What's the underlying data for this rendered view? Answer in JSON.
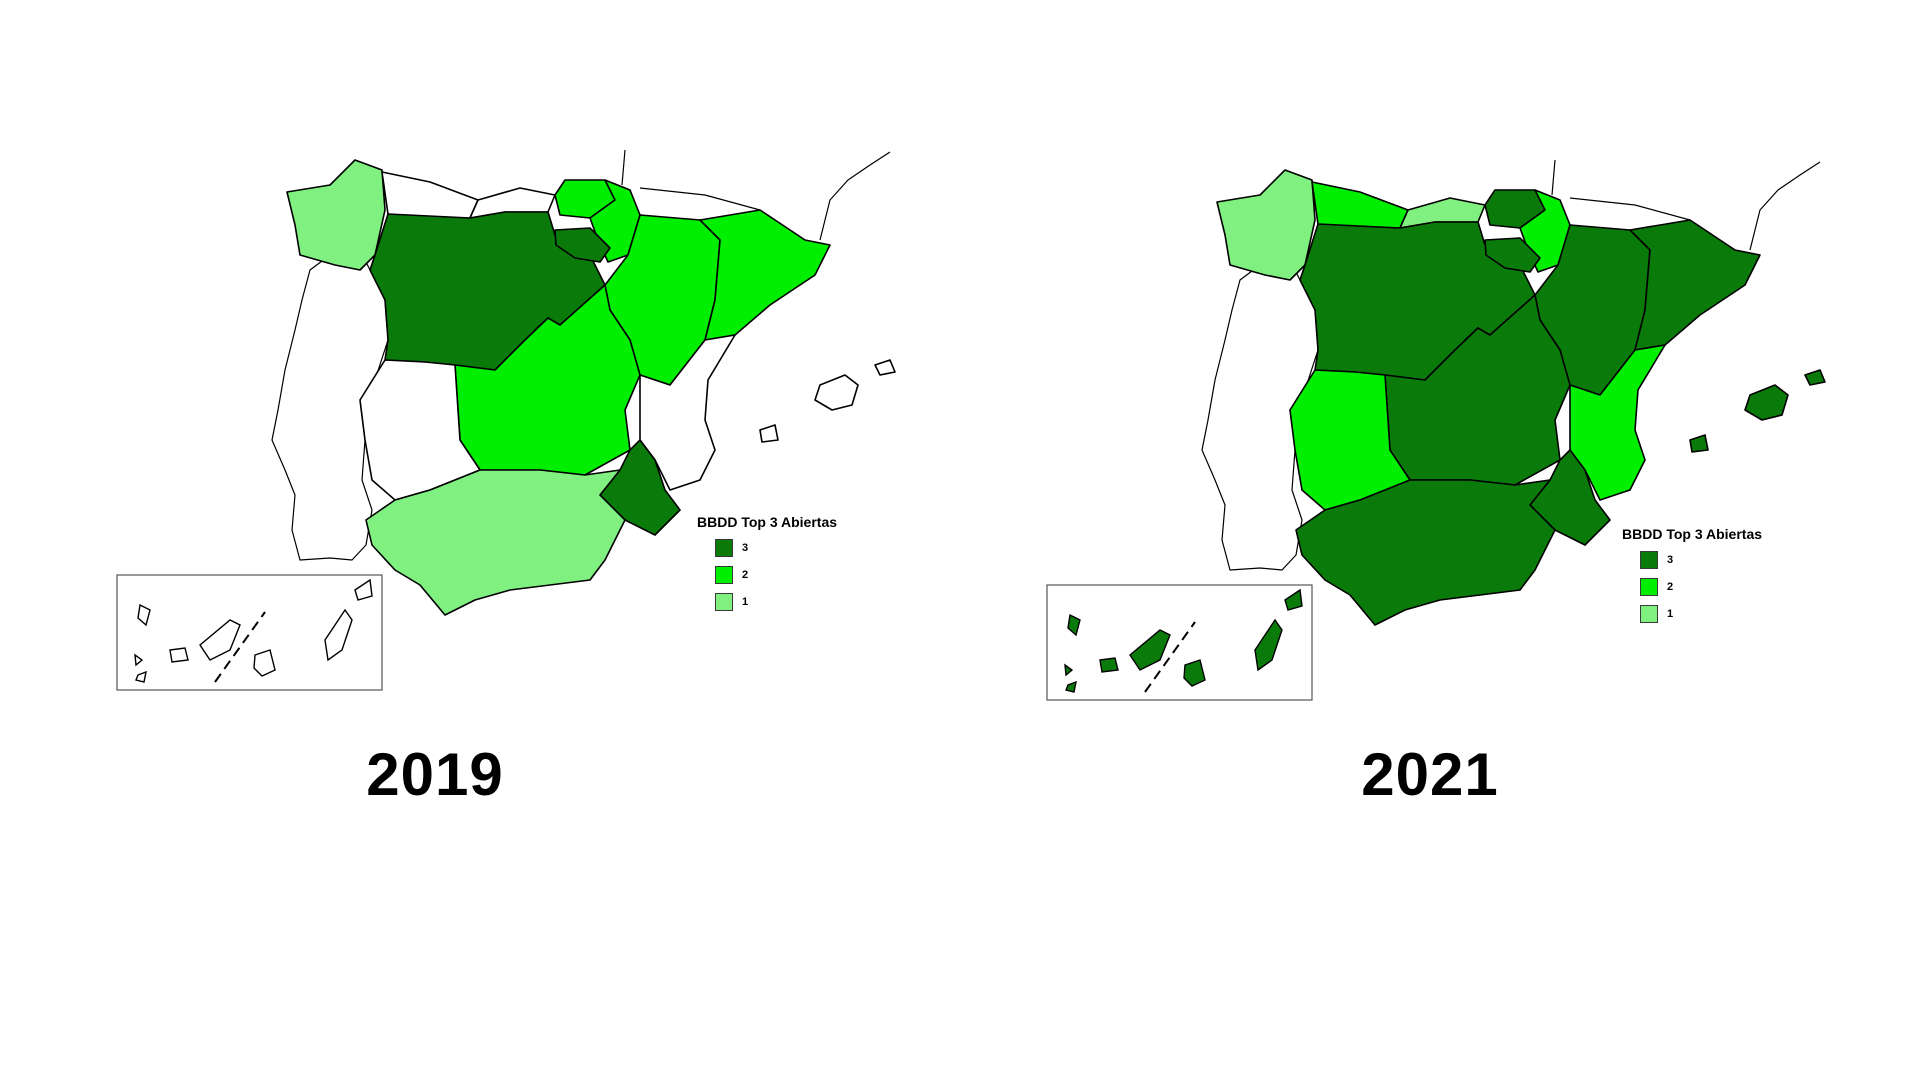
{
  "colors": {
    "level_3": "#0a7a0a",
    "level_2": "#00ee00",
    "level_1": "#80f080",
    "none": "#ffffff",
    "outline": "#000000"
  },
  "legend": {
    "title": "BBDD Top 3 Abiertas",
    "items": [
      {
        "label": "3",
        "color": "#0a7a0a"
      },
      {
        "label": "2",
        "color": "#00ee00"
      },
      {
        "label": "1",
        "color": "#80f080"
      }
    ]
  },
  "maps": [
    {
      "year": "2019",
      "regions": {
        "galicia": 1,
        "asturias": 0,
        "cantabria": 0,
        "pais_vasco": 2,
        "navarra": 2,
        "castilla_y_leon": 3,
        "la_rioja": 3,
        "aragon": 2,
        "cataluna": 2,
        "madrid": 2,
        "castilla_la_mancha": 2,
        "extremadura": 0,
        "comunidad_valenciana": 0,
        "murcia": 3,
        "andalucia": 1,
        "baleares": 0,
        "canarias": 0
      }
    },
    {
      "year": "2021",
      "regions": {
        "galicia": 1,
        "asturias": 2,
        "cantabria": 1,
        "pais_vasco": 3,
        "navarra": 2,
        "castilla_y_leon": 3,
        "la_rioja": 3,
        "aragon": 3,
        "cataluna": 3,
        "madrid": 3,
        "castilla_la_mancha": 3,
        "extremadura": 2,
        "comunidad_valenciana": 2,
        "murcia": 3,
        "andalucia": 3,
        "baleares": 3,
        "canarias": 3
      }
    }
  ]
}
